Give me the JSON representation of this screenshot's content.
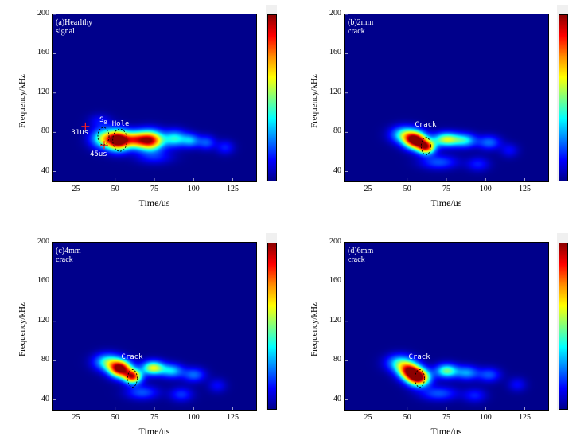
{
  "chart_data": [
    {
      "type": "heatmap",
      "title": "(a)Hearlthy signal",
      "xlabel": "Time/us",
      "ylabel": "Frequency/kHz",
      "xlim": [
        10,
        140
      ],
      "ylim": [
        30,
        200
      ],
      "x_ticks": [
        "25",
        "50",
        "75",
        "100",
        "125"
      ],
      "y_ticks": [
        "40",
        "80",
        "120",
        "160",
        "200"
      ],
      "annotations": {
        "s0": "S",
        "s0_sub": "0",
        "hole": "Hole",
        "t1": "31us",
        "t2": "45us"
      },
      "blobs": [
        {
          "x": 43,
          "y": 74,
          "sx": 6,
          "sy": 7,
          "v": 0.55
        },
        {
          "x": 52,
          "y": 72,
          "sx": 5,
          "sy": 7,
          "v": 1.0
        },
        {
          "x": 72,
          "y": 72,
          "sx": 6,
          "sy": 7,
          "v": 0.95
        },
        {
          "x": 62,
          "y": 73,
          "sx": 5,
          "sy": 6,
          "v": 0.55
        },
        {
          "x": 88,
          "y": 74,
          "sx": 5,
          "sy": 6,
          "v": 0.4
        },
        {
          "x": 98,
          "y": 72,
          "sx": 4,
          "sy": 5,
          "v": 0.3
        },
        {
          "x": 108,
          "y": 70,
          "sx": 4,
          "sy": 5,
          "v": 0.22
        },
        {
          "x": 120,
          "y": 65,
          "sx": 4,
          "sy": 5,
          "v": 0.15
        },
        {
          "x": 75,
          "y": 55,
          "sx": 8,
          "sy": 5,
          "v": 0.14
        },
        {
          "x": 40,
          "y": 92,
          "sx": 5,
          "sy": 5,
          "v": 0.12
        }
      ]
    },
    {
      "type": "heatmap",
      "title": "(b)2mm crack",
      "xlabel": "Time/us",
      "ylabel": "Frequency/kHz",
      "xlim": [
        10,
        140
      ],
      "ylim": [
        30,
        200
      ],
      "x_ticks": [
        "25",
        "50",
        "75",
        "100",
        "125"
      ],
      "y_ticks": [
        "40",
        "80",
        "120",
        "160",
        "200"
      ],
      "annotations": {
        "crack": "Crack"
      },
      "blobs": [
        {
          "x": 55,
          "y": 72,
          "sx": 5,
          "sy": 6,
          "v": 1.0
        },
        {
          "x": 62,
          "y": 65,
          "sx": 4,
          "sy": 5,
          "v": 0.8
        },
        {
          "x": 75,
          "y": 73,
          "sx": 6,
          "sy": 5,
          "v": 0.6
        },
        {
          "x": 48,
          "y": 78,
          "sx": 6,
          "sy": 6,
          "v": 0.45
        },
        {
          "x": 87,
          "y": 72,
          "sx": 5,
          "sy": 5,
          "v": 0.35
        },
        {
          "x": 102,
          "y": 70,
          "sx": 5,
          "sy": 5,
          "v": 0.25
        },
        {
          "x": 70,
          "y": 50,
          "sx": 8,
          "sy": 5,
          "v": 0.22
        },
        {
          "x": 95,
          "y": 48,
          "sx": 5,
          "sy": 5,
          "v": 0.15
        },
        {
          "x": 115,
          "y": 62,
          "sx": 4,
          "sy": 5,
          "v": 0.12
        }
      ]
    },
    {
      "type": "heatmap",
      "title": "(c)4mm crack",
      "xlabel": "Time/us",
      "ylabel": "Frequency/kHz",
      "xlim": [
        10,
        140
      ],
      "ylim": [
        30,
        200
      ],
      "x_ticks": [
        "25",
        "50",
        "75",
        "100",
        "125"
      ],
      "y_ticks": [
        "40",
        "80",
        "120",
        "160",
        "200"
      ],
      "annotations": {
        "crack": "Crack"
      },
      "blobs": [
        {
          "x": 53,
          "y": 72,
          "sx": 5,
          "sy": 6,
          "v": 1.0
        },
        {
          "x": 61,
          "y": 64,
          "sx": 4,
          "sy": 5,
          "v": 0.85
        },
        {
          "x": 74,
          "y": 73,
          "sx": 5,
          "sy": 5,
          "v": 0.62
        },
        {
          "x": 45,
          "y": 79,
          "sx": 6,
          "sy": 6,
          "v": 0.45
        },
        {
          "x": 86,
          "y": 70,
          "sx": 5,
          "sy": 5,
          "v": 0.35
        },
        {
          "x": 100,
          "y": 66,
          "sx": 5,
          "sy": 5,
          "v": 0.25
        },
        {
          "x": 67,
          "y": 48,
          "sx": 7,
          "sy": 5,
          "v": 0.22
        },
        {
          "x": 92,
          "y": 46,
          "sx": 5,
          "sy": 5,
          "v": 0.18
        },
        {
          "x": 115,
          "y": 55,
          "sx": 4,
          "sy": 5,
          "v": 0.12
        }
      ]
    },
    {
      "type": "heatmap",
      "title": "(d)6mm crack",
      "xlabel": "Time/us",
      "ylabel": "Frequency/kHz",
      "xlim": [
        10,
        140
      ],
      "ylim": [
        30,
        200
      ],
      "x_ticks": [
        "25",
        "50",
        "75",
        "100",
        "125"
      ],
      "y_ticks": [
        "40",
        "80",
        "120",
        "160",
        "200"
      ],
      "annotations": {
        "crack": "Crack"
      },
      "blobs": [
        {
          "x": 57,
          "y": 63,
          "sx": 5,
          "sy": 6,
          "v": 1.0
        },
        {
          "x": 51,
          "y": 70,
          "sx": 5,
          "sy": 6,
          "v": 0.8
        },
        {
          "x": 75,
          "y": 70,
          "sx": 5,
          "sy": 5,
          "v": 0.5
        },
        {
          "x": 45,
          "y": 78,
          "sx": 6,
          "sy": 6,
          "v": 0.4
        },
        {
          "x": 88,
          "y": 68,
          "sx": 5,
          "sy": 5,
          "v": 0.3
        },
        {
          "x": 102,
          "y": 66,
          "sx": 5,
          "sy": 5,
          "v": 0.22
        },
        {
          "x": 70,
          "y": 47,
          "sx": 8,
          "sy": 5,
          "v": 0.22
        },
        {
          "x": 93,
          "y": 45,
          "sx": 5,
          "sy": 5,
          "v": 0.15
        },
        {
          "x": 120,
          "y": 56,
          "sx": 4,
          "sy": 5,
          "v": 0.12
        }
      ]
    }
  ]
}
